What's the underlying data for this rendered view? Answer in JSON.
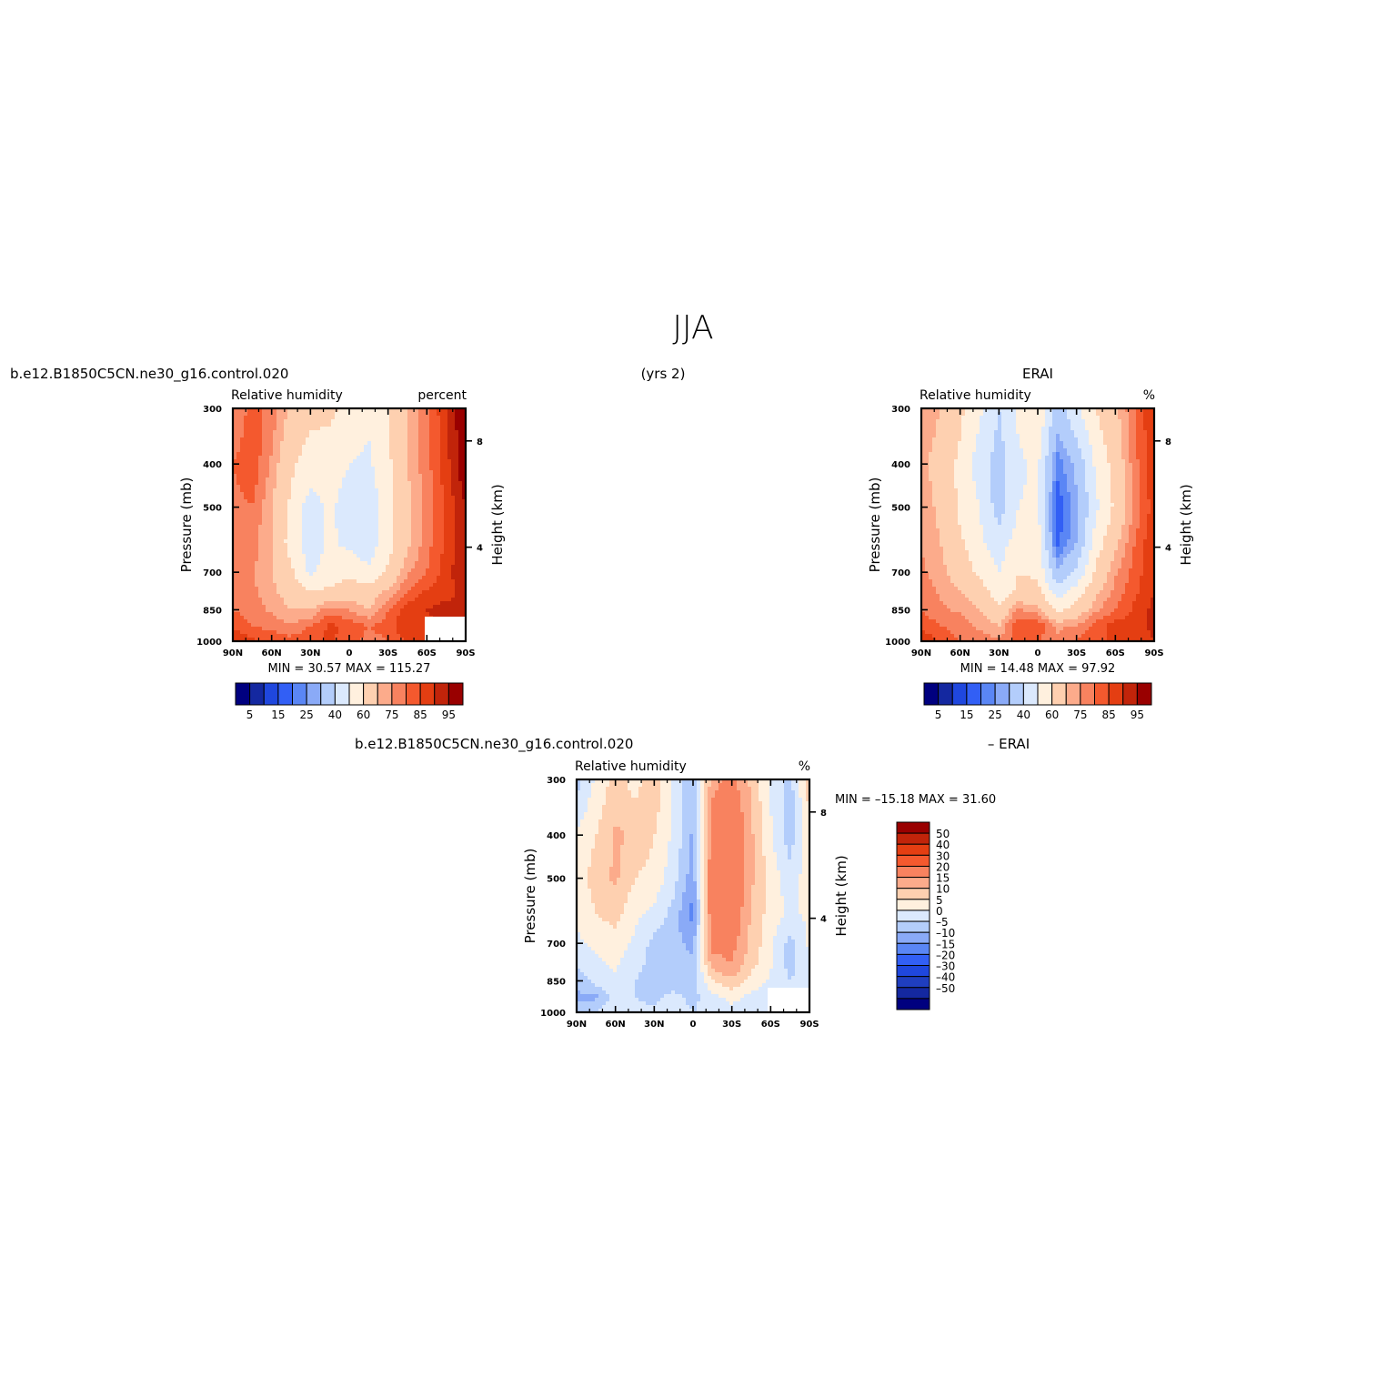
{
  "page_title": "JJA",
  "years_label": "(yrs 2)",
  "colors": {
    "rh": [
      "#00007f",
      "#1428a0",
      "#1f47de",
      "#325ff5",
      "#5a86f5",
      "#8aaaf7",
      "#b3cdfb",
      "#dbe9fd",
      "#fff0de",
      "#fed0b0",
      "#fcab8b",
      "#f8825f",
      "#f4592e",
      "#e43e12",
      "#c1240a",
      "#990000"
    ],
    "diff": [
      "#00007f",
      "#1428a0",
      "#1f3ebf",
      "#1f47de",
      "#325ff5",
      "#5a86f5",
      "#8aaaf7",
      "#b3cdfb",
      "#dbe9fd",
      "#fff0de",
      "#fed0b0",
      "#fcab8b",
      "#f8825f",
      "#f4592e",
      "#e43e12",
      "#c1240a",
      "#990000"
    ]
  },
  "chart_data": [
    {
      "type": "heatmap",
      "case_label": "b.e12.B1850C5CN.ne30_g16.control.020",
      "title": "Relative humidity",
      "units": "percent",
      "ylabel": "Pressure (mb)",
      "ylabel_right": "Height (km)",
      "x_ticks": [
        "90N",
        "60N",
        "30N",
        "0",
        "30S",
        "60S",
        "90S"
      ],
      "y_ticks": [
        "300",
        "400",
        "500",
        "700",
        "850",
        "1000"
      ],
      "height_ticks": [
        "8",
        "4"
      ],
      "x_range": [
        90,
        -90
      ],
      "y_range": [
        300,
        1000
      ],
      "y_scale": "log",
      "stats": {
        "min_label": "MIN =",
        "min": "30.57",
        "max_label": "MAX =",
        "max": "115.27"
      },
      "levels": [
        5,
        10,
        15,
        20,
        25,
        30,
        40,
        50,
        60,
        70,
        75,
        80,
        85,
        90,
        95
      ],
      "colorbar_labels": [
        "5",
        "15",
        "25",
        "40",
        "60",
        "75",
        "85",
        "95"
      ],
      "colorbar_orientation": "horizontal",
      "x": [
        90,
        75,
        60,
        45,
        30,
        15,
        0,
        -15,
        -30,
        -45,
        -60,
        -75,
        -90
      ],
      "y": [
        300,
        400,
        500,
        600,
        700,
        775,
        850,
        925,
        1000
      ],
      "z": [
        [
          75,
          82,
          78,
          68,
          63,
          62,
          57,
          52,
          60,
          70,
          78,
          90,
          100
        ],
        [
          80,
          84,
          74,
          62,
          55,
          55,
          50,
          48,
          58,
          70,
          78,
          88,
          100
        ],
        [
          78,
          80,
          70,
          58,
          45,
          52,
          45,
          43,
          56,
          68,
          77,
          86,
          95
        ],
        [
          76,
          77,
          70,
          56,
          44,
          52,
          47,
          44,
          56,
          68,
          78,
          86,
          95
        ],
        [
          77,
          76,
          70,
          62,
          48,
          55,
          58,
          52,
          62,
          74,
          80,
          88,
          95
        ],
        [
          78,
          76,
          72,
          66,
          60,
          62,
          65,
          65,
          72,
          80,
          86,
          88,
          92
        ],
        [
          80,
          78,
          74,
          70,
          70,
          78,
          75,
          70,
          80,
          88,
          90,
          92,
          92
        ],
        [
          84,
          80,
          78,
          76,
          80,
          86,
          84,
          80,
          82,
          90,
          88,
          92,
          90
        ],
        [
          90,
          86,
          84,
          82,
          84,
          86,
          82,
          78,
          80,
          86,
          86,
          88,
          88
        ]
      ]
    },
    {
      "type": "heatmap",
      "case_label": "ERAI",
      "title": "Relative humidity",
      "units": "%",
      "ylabel": "Pressure (mb)",
      "ylabel_right": "Height (km)",
      "x_ticks": [
        "90N",
        "60N",
        "30N",
        "0",
        "30S",
        "60S",
        "90S"
      ],
      "y_ticks": [
        "300",
        "400",
        "500",
        "700",
        "850",
        "1000"
      ],
      "height_ticks": [
        "8",
        "4"
      ],
      "x_range": [
        90,
        -90
      ],
      "y_range": [
        300,
        1000
      ],
      "y_scale": "log",
      "stats": {
        "min_label": "MIN =",
        "min": "14.48",
        "max_label": "MAX =",
        "max": "97.92"
      },
      "levels": [
        5,
        10,
        15,
        20,
        25,
        30,
        40,
        50,
        60,
        70,
        75,
        80,
        85,
        90,
        95
      ],
      "colorbar_labels": [
        "5",
        "15",
        "25",
        "40",
        "60",
        "75",
        "85",
        "95"
      ],
      "colorbar_orientation": "horizontal",
      "x": [
        90,
        75,
        60,
        45,
        30,
        15,
        0,
        -15,
        -30,
        -45,
        -60,
        -75,
        -90
      ],
      "y": [
        300,
        400,
        500,
        600,
        700,
        775,
        850,
        925,
        1000
      ],
      "z": [
        [
          75,
          70,
          62,
          52,
          40,
          52,
          60,
          35,
          48,
          60,
          68,
          80,
          90
        ],
        [
          72,
          66,
          58,
          45,
          35,
          48,
          52,
          22,
          32,
          52,
          64,
          78,
          90
        ],
        [
          74,
          68,
          58,
          50,
          35,
          50,
          52,
          16,
          28,
          48,
          62,
          76,
          88
        ],
        [
          75,
          70,
          62,
          52,
          45,
          55,
          55,
          18,
          30,
          55,
          68,
          80,
          90
        ],
        [
          76,
          72,
          66,
          58,
          50,
          60,
          58,
          32,
          42,
          62,
          74,
          82,
          90
        ],
        [
          78,
          74,
          70,
          65,
          55,
          62,
          64,
          45,
          55,
          68,
          77,
          84,
          90
        ],
        [
          80,
          76,
          74,
          70,
          62,
          76,
          72,
          58,
          64,
          74,
          80,
          86,
          92
        ],
        [
          84,
          80,
          78,
          74,
          70,
          85,
          84,
          74,
          76,
          82,
          88,
          86,
          92
        ],
        [
          90,
          84,
          80,
          78,
          76,
          82,
          80,
          76,
          80,
          84,
          86,
          86,
          90
        ]
      ]
    },
    {
      "type": "heatmap",
      "case_label": "b.e12.B1850C5CN.ne30_g16.control.020",
      "case_label_right": "– ERAI",
      "title": "Relative humidity",
      "units": "%",
      "ylabel": "Pressure (mb)",
      "ylabel_right": "Height (km)",
      "x_ticks": [
        "90N",
        "60N",
        "30N",
        "0",
        "30S",
        "60S",
        "90S"
      ],
      "y_ticks": [
        "300",
        "400",
        "500",
        "700",
        "850",
        "1000"
      ],
      "height_ticks": [
        "8",
        "4"
      ],
      "x_range": [
        90,
        -90
      ],
      "y_range": [
        300,
        1000
      ],
      "y_scale": "log",
      "stats": {
        "min_label": "MIN =",
        "min": "–15.18",
        "max_label": "MAX =",
        "max": "31.60"
      },
      "levels": [
        -50,
        -40,
        -30,
        -20,
        -15,
        -10,
        -5,
        0,
        5,
        10,
        15,
        20,
        30,
        40,
        50
      ],
      "colorbar_labels": [
        "50",
        "40",
        "30",
        "20",
        "15",
        "10",
        "5",
        "0",
        "–5",
        "–10",
        "–15",
        "–20",
        "–30",
        "–40",
        "–50"
      ],
      "colorbar_orientation": "vertical",
      "x": [
        90,
        75,
        60,
        45,
        30,
        15,
        0,
        -15,
        -30,
        -45,
        -60,
        -75,
        -90
      ],
      "y": [
        300,
        400,
        500,
        600,
        700,
        775,
        850,
        925,
        1000
      ],
      "z": [
        [
          -2,
          6,
          12,
          8,
          14,
          4,
          -4,
          18,
          22,
          14,
          4,
          -2,
          12
        ],
        [
          6,
          10,
          16,
          14,
          10,
          4,
          -6,
          24,
          28,
          16,
          6,
          -3,
          10
        ],
        [
          8,
          12,
          16,
          10,
          8,
          2,
          -8,
          26,
          28,
          16,
          8,
          2,
          8
        ],
        [
          6,
          10,
          12,
          6,
          4,
          -2,
          -12,
          26,
          26,
          14,
          8,
          4,
          6
        ],
        [
          4,
          6,
          8,
          4,
          -2,
          -4,
          -6,
          22,
          22,
          14,
          6,
          -2,
          6
        ],
        [
          2,
          4,
          6,
          2,
          -2,
          -4,
          -4,
          18,
          20,
          12,
          6,
          -2,
          4
        ],
        [
          -4,
          2,
          4,
          0,
          -2,
          -4,
          -2,
          10,
          14,
          8,
          4,
          0,
          2
        ],
        [
          -6,
          -6,
          2,
          0,
          -2,
          2,
          -2,
          4,
          6,
          4,
          2,
          2,
          2
        ],
        [
          -2,
          0,
          4,
          2,
          2,
          4,
          0,
          2,
          4,
          2,
          2,
          2,
          0
        ]
      ]
    }
  ]
}
